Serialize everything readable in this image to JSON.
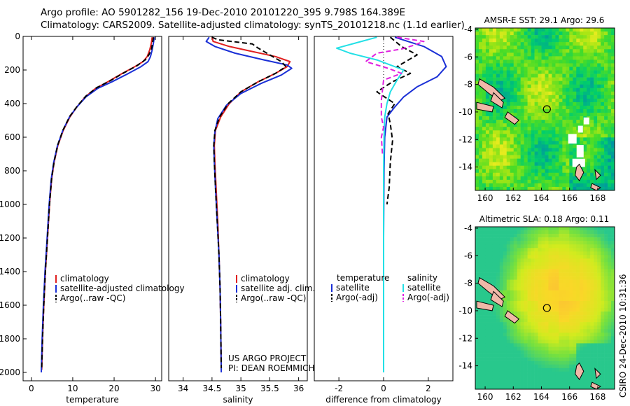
{
  "header": {
    "line1": "Argo profile: AO 5901282_156 19-Dec-2010 20101220_395 9.798S 164.389E",
    "line2": "Climatology: CARS2009. Satellite-adjusted climatology: synTS_20101218.nc (1.1d earlier)"
  },
  "colors": {
    "climatology": "#e02020",
    "satellite": "#1a2fd6",
    "argo": "#000000",
    "satellite_salinity": "#22e0e6",
    "argo_adj_salinity": "#e020e0"
  },
  "chart_data": [
    {
      "type": "line",
      "xlabel": "temperature",
      "ylabel": "",
      "xlim": [
        -2,
        31.5
      ],
      "ylim": [
        2050,
        0
      ],
      "xticks": [
        0,
        10,
        20,
        30
      ],
      "yticks": [
        0,
        200,
        400,
        600,
        800,
        1000,
        1200,
        1400,
        1600,
        1800,
        2000
      ],
      "legend": {
        "position": "bottom",
        "entries": [
          "climatology",
          "satellite-adjusted climatology",
          "Argo(..raw -QC)"
        ]
      },
      "series": [
        {
          "name": "climatology",
          "color": "red",
          "dash": "",
          "points": [
            [
              29.2,
              5
            ],
            [
              29.0,
              40
            ],
            [
              28.6,
              80
            ],
            [
              28.0,
              120
            ],
            [
              27.0,
              150
            ],
            [
              25.0,
              180
            ],
            [
              22.0,
              220
            ],
            [
              18.5,
              270
            ],
            [
              15.5,
              310
            ],
            [
              13.0,
              360
            ],
            [
              11.0,
              420
            ],
            [
              9.3,
              480
            ],
            [
              7.7,
              560
            ],
            [
              6.4,
              650
            ],
            [
              5.5,
              750
            ],
            [
              4.9,
              850
            ],
            [
              4.4,
              1000
            ],
            [
              3.9,
              1200
            ],
            [
              3.4,
              1400
            ],
            [
              3.0,
              1600
            ],
            [
              2.7,
              1800
            ],
            [
              2.5,
              1985
            ]
          ]
        },
        {
          "name": "satellite-adjusted climatology",
          "color": "blue",
          "dash": "",
          "points": [
            [
              29.7,
              5
            ],
            [
              29.5,
              40
            ],
            [
              29.2,
              80
            ],
            [
              28.8,
              120
            ],
            [
              28.2,
              150
            ],
            [
              26.5,
              180
            ],
            [
              23.5,
              220
            ],
            [
              19.5,
              270
            ],
            [
              16.0,
              310
            ],
            [
              13.2,
              360
            ],
            [
              11.0,
              420
            ],
            [
              9.2,
              480
            ],
            [
              7.6,
              560
            ],
            [
              6.3,
              650
            ],
            [
              5.4,
              750
            ],
            [
              4.8,
              850
            ],
            [
              4.3,
              1000
            ],
            [
              3.8,
              1200
            ],
            [
              3.3,
              1400
            ],
            [
              2.9,
              1600
            ],
            [
              2.6,
              1800
            ],
            [
              2.4,
              2000
            ]
          ]
        },
        {
          "name": "Argo(..raw -QC)",
          "color": "black",
          "dash": "7,4",
          "points": [
            [
              29.5,
              5
            ],
            [
              29.3,
              40
            ],
            [
              29.0,
              80
            ],
            [
              28.4,
              110
            ],
            [
              27.5,
              140
            ],
            [
              25.5,
              175
            ],
            [
              22.5,
              215
            ],
            [
              19.0,
              265
            ],
            [
              15.8,
              305
            ],
            [
              13.2,
              355
            ],
            [
              11.1,
              415
            ],
            [
              9.3,
              475
            ],
            [
              7.7,
              555
            ],
            [
              6.4,
              645
            ],
            [
              5.5,
              745
            ],
            [
              4.9,
              845
            ],
            [
              4.4,
              995
            ],
            [
              3.9,
              1195
            ],
            [
              3.4,
              1395
            ],
            [
              3.0,
              1595
            ],
            [
              2.7,
              1795
            ],
            [
              2.5,
              1975
            ]
          ]
        }
      ]
    },
    {
      "type": "line",
      "xlabel": "salinity",
      "ylabel": "",
      "xlim": [
        33.75,
        36.15
      ],
      "ylim": [
        2050,
        0
      ],
      "xticks": [
        34,
        34.5,
        35,
        35.5,
        36
      ],
      "yticks": [],
      "legend": {
        "position": "bottom",
        "entries": [
          "climatology",
          "satellite adj. clim.",
          "Argo(..raw -QC)"
        ]
      },
      "annotation": [
        "US ARGO PROJECT",
        "PI: DEAN ROEMMICH"
      ],
      "series": [
        {
          "name": "climatology",
          "color": "red",
          "dash": "",
          "points": [
            [
              34.5,
              5
            ],
            [
              34.52,
              30
            ],
            [
              34.8,
              60
            ],
            [
              35.2,
              90
            ],
            [
              35.6,
              120
            ],
            [
              35.85,
              150
            ],
            [
              35.8,
              180
            ],
            [
              35.6,
              220
            ],
            [
              35.3,
              270
            ],
            [
              35.0,
              330
            ],
            [
              34.8,
              400
            ],
            [
              34.65,
              480
            ],
            [
              34.56,
              560
            ],
            [
              34.54,
              650
            ],
            [
              34.55,
              750
            ],
            [
              34.57,
              900
            ],
            [
              34.6,
              1100
            ],
            [
              34.62,
              1300
            ],
            [
              34.64,
              1500
            ],
            [
              34.65,
              1700
            ],
            [
              34.66,
              1985
            ]
          ]
        },
        {
          "name": "satellite adj. clim.",
          "color": "blue",
          "dash": "",
          "points": [
            [
              34.45,
              5
            ],
            [
              34.4,
              30
            ],
            [
              34.55,
              60
            ],
            [
              34.9,
              100
            ],
            [
              35.4,
              140
            ],
            [
              35.8,
              170
            ],
            [
              35.88,
              190
            ],
            [
              35.7,
              230
            ],
            [
              35.35,
              280
            ],
            [
              35.0,
              340
            ],
            [
              34.75,
              410
            ],
            [
              34.6,
              490
            ],
            [
              34.55,
              570
            ],
            [
              34.53,
              650
            ],
            [
              34.54,
              750
            ],
            [
              34.56,
              900
            ],
            [
              34.59,
              1100
            ],
            [
              34.62,
              1300
            ],
            [
              34.64,
              1500
            ],
            [
              34.65,
              1700
            ],
            [
              34.66,
              2000
            ]
          ]
        },
        {
          "name": "Argo(..raw -QC)",
          "color": "black",
          "dash": "7,4",
          "points": [
            [
              34.5,
              5
            ],
            [
              34.6,
              20
            ],
            [
              35.2,
              45
            ],
            [
              35.3,
              70
            ],
            [
              35.5,
              110
            ],
            [
              35.7,
              150
            ],
            [
              35.78,
              180
            ],
            [
              35.6,
              220
            ],
            [
              35.3,
              270
            ],
            [
              35.0,
              330
            ],
            [
              34.78,
              400
            ],
            [
              34.63,
              480
            ],
            [
              34.55,
              560
            ],
            [
              34.53,
              650
            ],
            [
              34.54,
              750
            ],
            [
              34.56,
              900
            ],
            [
              34.59,
              1100
            ],
            [
              34.62,
              1300
            ],
            [
              34.64,
              1500
            ],
            [
              34.65,
              1700
            ],
            [
              34.66,
              1975
            ]
          ]
        }
      ]
    },
    {
      "type": "line",
      "xlabel": "difference from climatology",
      "ylabel": "",
      "xlim": [
        -3.1,
        3.1
      ],
      "ylim": [
        2050,
        0
      ],
      "xticks": [
        -2,
        0,
        2
      ],
      "yticks": [],
      "legend": {
        "position": "bottom",
        "groups": [
          {
            "title": "temperature",
            "entries": [
              "satellite",
              "Argo(-adj)"
            ]
          },
          {
            "title": "salinity",
            "entries": [
              "satellite",
              "Argo(-adj)"
            ]
          }
        ]
      },
      "series": [
        {
          "name": "satellite",
          "color": "blue",
          "dash": "",
          "points": [
            [
              0.5,
              5
            ],
            [
              1.8,
              60
            ],
            [
              2.6,
              120
            ],
            [
              2.8,
              180
            ],
            [
              2.4,
              240
            ],
            [
              1.5,
              300
            ],
            [
              0.9,
              360
            ],
            [
              0.5,
              420
            ],
            [
              0.15,
              480
            ],
            [
              0.05,
              600
            ],
            [
              0.02,
              800
            ],
            [
              0.01,
              1000
            ],
            [
              0.0,
              1200
            ],
            [
              0.0,
              1500
            ],
            [
              0.0,
              2000
            ]
          ]
        },
        {
          "name": "Argo(-adj)",
          "color": "black",
          "dash": "7,4",
          "points": [
            [
              0.3,
              5
            ],
            [
              0.8,
              60
            ],
            [
              1.5,
              110
            ],
            [
              0.6,
              180
            ],
            [
              1.2,
              220
            ],
            [
              0.4,
              270
            ],
            [
              -0.3,
              330
            ],
            [
              0.5,
              400
            ],
            [
              0.2,
              460
            ],
            [
              0.3,
              520
            ],
            [
              0.4,
              620
            ],
            [
              0.3,
              750
            ],
            [
              0.25,
              900
            ],
            [
              0.15,
              1000
            ]
          ]
        },
        {
          "name": "satellite",
          "color": "cyan",
          "dash": "",
          "points": [
            [
              -0.3,
              5
            ],
            [
              -2.1,
              70
            ],
            [
              -1.5,
              100
            ],
            [
              -0.3,
              140
            ],
            [
              0.3,
              170
            ],
            [
              0.9,
              200
            ],
            [
              0.6,
              260
            ],
            [
              0.3,
              330
            ],
            [
              0.15,
              400
            ],
            [
              0.05,
              480
            ],
            [
              0.02,
              600
            ],
            [
              0.0,
              800
            ],
            [
              0.0,
              1200
            ],
            [
              0.0,
              1600
            ],
            [
              0.0,
              2000
            ]
          ]
        },
        {
          "name": "Argo(-adj)",
          "color": "magenta",
          "dash": "7,4",
          "points": [
            [
              0.6,
              5
            ],
            [
              1.8,
              30
            ],
            [
              1.3,
              55
            ],
            [
              0.8,
              75
            ],
            [
              -0.3,
              100
            ],
            [
              -0.8,
              150
            ],
            [
              0.2,
              190
            ],
            [
              0.8,
              220
            ],
            [
              0.0,
              260
            ],
            [
              -0.1,
              380
            ],
            [
              -0.1,
              480
            ],
            [
              0.0,
              540
            ],
            [
              -0.1,
              600
            ],
            [
              -0.05,
              700
            ]
          ]
        }
      ]
    },
    {
      "type": "heatmap",
      "title": "AMSR-E SST: 29.1 Argo: 29.6",
      "xlabel": "",
      "ylabel": "",
      "xlim": [
        159.3,
        169.2
      ],
      "ylim": [
        -15.7,
        -3.9
      ],
      "xticks": [
        160,
        162,
        164,
        166,
        168
      ],
      "yticks": [
        -4,
        -6,
        -8,
        -10,
        -12,
        -14
      ],
      "marker": {
        "lon": 164.389,
        "lat": -9.798
      }
    },
    {
      "type": "heatmap",
      "title": "Altimetric SLA: 0.18 Argo: 0.11",
      "xlabel": "",
      "ylabel": "",
      "xlim": [
        159.3,
        169.2
      ],
      "ylim": [
        -15.7,
        -3.9
      ],
      "xticks": [
        160,
        162,
        164,
        166,
        168
      ],
      "yticks": [
        -4,
        -6,
        -8,
        -10,
        -12,
        -14
      ],
      "marker": {
        "lon": 164.389,
        "lat": -9.798
      }
    }
  ],
  "credit": "CSIRO 24-Dec-2010 10:31:36"
}
